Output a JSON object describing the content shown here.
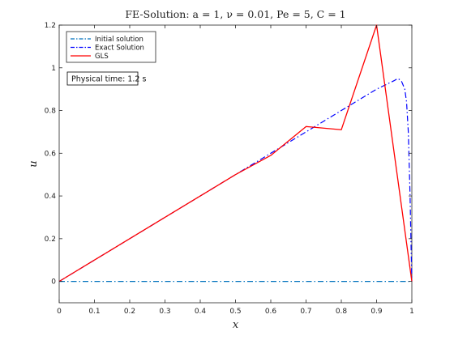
{
  "chart_data": {
    "type": "line",
    "title": "FE-Solution: a = 1,  ν = 0.01,  Pe = 5,  C = 1",
    "xlabel": "x",
    "ylabel": "u",
    "xlim": [
      0,
      1
    ],
    "ylim": [
      -0.1,
      1.2
    ],
    "xticks": [
      0,
      0.1,
      0.2,
      0.3,
      0.4,
      0.5,
      0.6,
      0.7,
      0.8,
      0.9,
      1
    ],
    "xtick_labels": [
      "0",
      "0.1",
      "0.2",
      "0.3",
      "0.4",
      "0.5",
      "0.6",
      "0.7",
      "0.8",
      "0.9",
      "1"
    ],
    "yticks": [
      0,
      0.2,
      0.4,
      0.6,
      0.8,
      1,
      1.2
    ],
    "ytick_labels": [
      "0",
      "0.2",
      "0.4",
      "0.6",
      "0.8",
      "1",
      "1.2"
    ],
    "grid": false,
    "legend_position": "top-left",
    "annotation": "Physical time: 1.2  s",
    "series": [
      {
        "name": "Initial solution",
        "color": "#0072BD",
        "style": "dash-dot",
        "x": [
          0,
          1
        ],
        "y": [
          0,
          0
        ]
      },
      {
        "name": "Exact Solution",
        "color": "#0000FF",
        "style": "dash-dot",
        "x": [
          0,
          0.1,
          0.2,
          0.3,
          0.4,
          0.5,
          0.6,
          0.7,
          0.8,
          0.9,
          0.95,
          0.96,
          0.97,
          0.98,
          0.985,
          0.99,
          0.995,
          0.998,
          1.0
        ],
        "y": [
          0,
          0.1,
          0.2,
          0.3,
          0.4,
          0.5,
          0.6,
          0.7,
          0.8,
          0.9,
          0.94,
          0.95,
          0.94,
          0.9,
          0.84,
          0.7,
          0.4,
          0.15,
          0
        ]
      },
      {
        "name": "GLS",
        "color": "#FF0000",
        "style": "solid",
        "x": [
          0,
          0.1,
          0.2,
          0.3,
          0.4,
          0.5,
          0.6,
          0.7,
          0.8,
          0.9,
          1.0
        ],
        "y": [
          0,
          0.1,
          0.2,
          0.3,
          0.4,
          0.5,
          0.59,
          0.725,
          0.71,
          1.2,
          0.0
        ]
      }
    ]
  }
}
